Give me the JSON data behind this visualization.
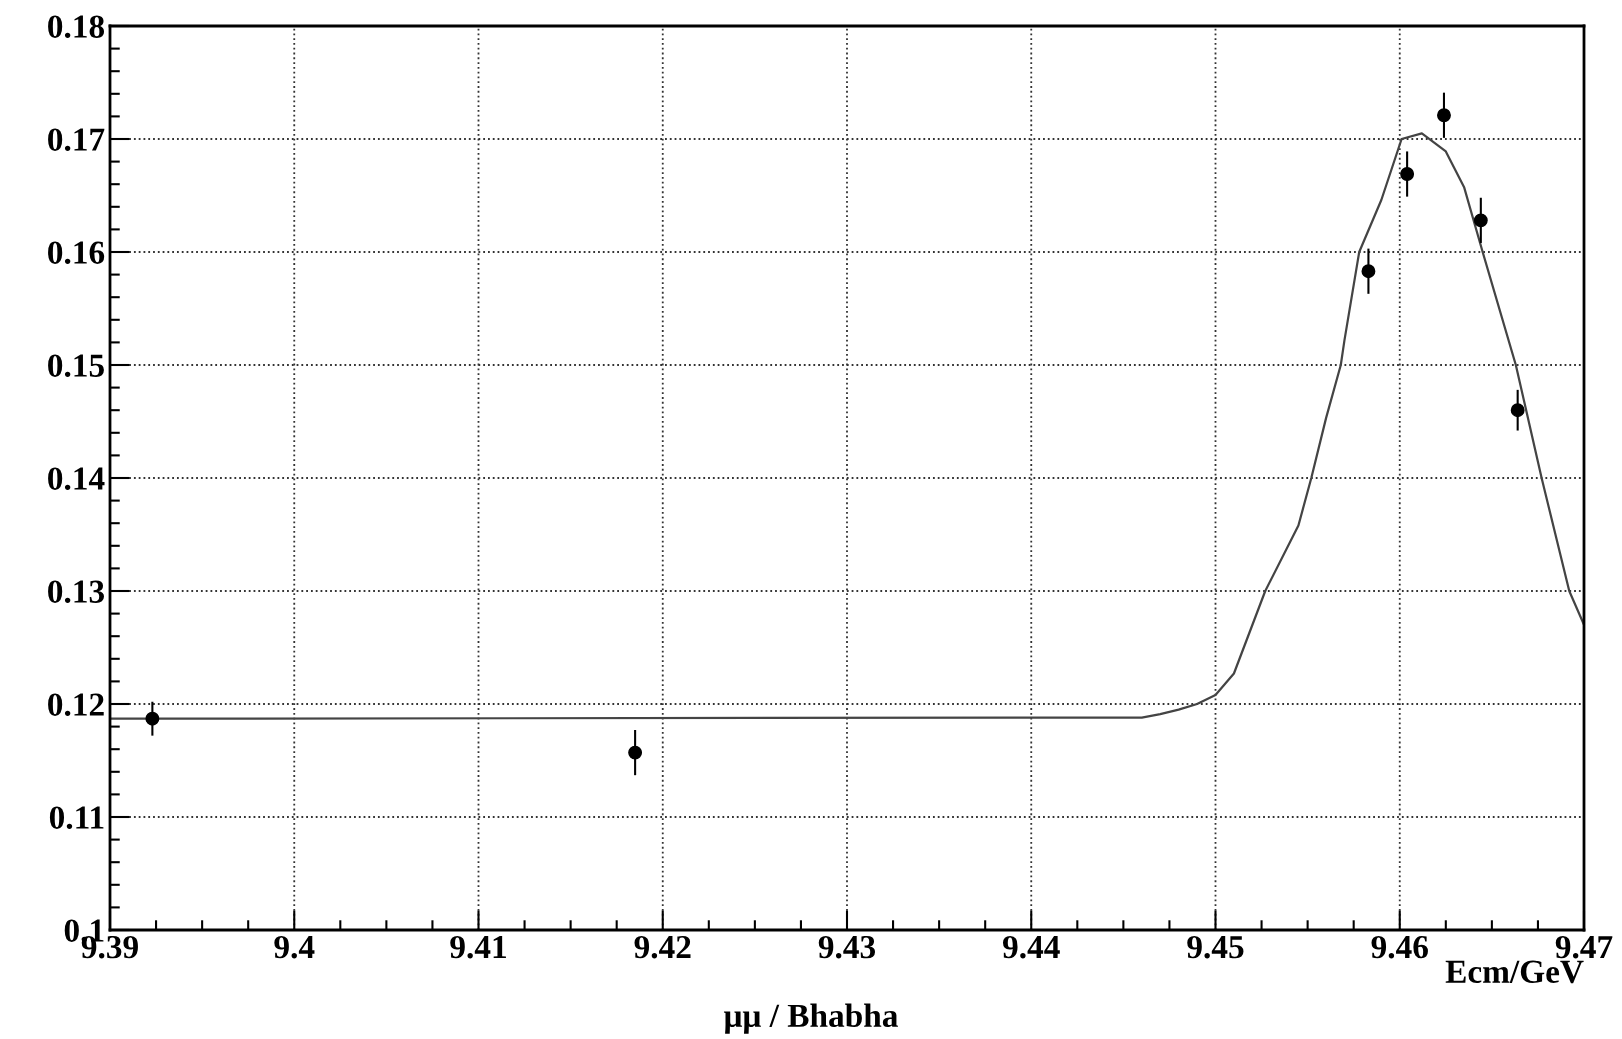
{
  "chart_data": {
    "type": "scatter",
    "title": "μμ / Bhabha",
    "xlabel": "Ecm/GeV",
    "xlim": [
      9.39,
      9.47
    ],
    "xticks": [
      9.39,
      9.4,
      9.41,
      9.42,
      9.43,
      9.44,
      9.45,
      9.46,
      9.47
    ],
    "ylim": [
      0.1,
      0.18
    ],
    "yticks": [
      0.1,
      0.11,
      0.12,
      0.13,
      0.14,
      0.15,
      0.16,
      0.17,
      0.18
    ],
    "grid": true,
    "series": [
      {
        "color": "#000000",
        "marker": "circle",
        "x": [
          9.3923,
          9.4185,
          9.4583,
          9.4604,
          9.4624,
          9.4644,
          9.4664
        ],
        "values": [
          0.1187,
          0.1157,
          0.1583,
          0.1669,
          0.1721,
          0.1628,
          0.146
        ],
        "errors": [
          0.0015,
          0.002,
          0.002,
          0.002,
          0.002,
          0.002,
          0.0018
        ]
      },
      {
        "type": "line",
        "color": "#444444",
        "line_style": "solid",
        "x": [
          9.39,
          9.446,
          9.447,
          9.448,
          9.449,
          9.45,
          9.451,
          9.4527,
          9.4545,
          9.4552,
          9.456,
          9.4568,
          9.457,
          9.4578,
          9.459,
          9.4601,
          9.4612,
          9.4625,
          9.4635,
          9.4645,
          9.4663,
          9.4677,
          9.4692,
          9.47
        ],
        "values": [
          0.1187,
          0.1188,
          0.1191,
          0.1195,
          0.12,
          0.1208,
          0.1227,
          0.13,
          0.1358,
          0.14,
          0.1453,
          0.15,
          0.1522,
          0.16,
          0.1646,
          0.17,
          0.1705,
          0.1689,
          0.1657,
          0.16,
          0.15,
          0.14,
          0.13,
          0.127
        ]
      }
    ]
  }
}
